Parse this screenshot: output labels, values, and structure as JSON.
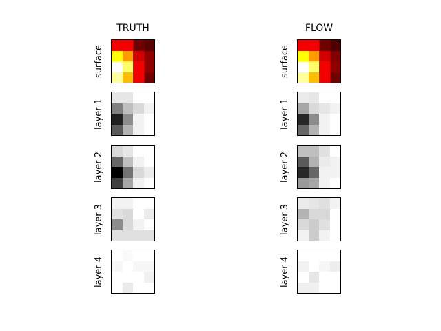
{
  "chart_data": {
    "type": "heatmap",
    "columns": [
      {
        "key": "truth",
        "title": "TRUTH"
      },
      {
        "key": "flow",
        "title": "FLOW"
      }
    ],
    "rows": [
      {
        "key": "surface",
        "label": "surface",
        "colormap": "hot"
      },
      {
        "key": "layer_1",
        "label": "layer 1",
        "colormap": "gray_r"
      },
      {
        "key": "layer_2",
        "label": "layer 2",
        "colormap": "gray_r"
      },
      {
        "key": "layer_3",
        "label": "layer 3",
        "colormap": "gray_r"
      },
      {
        "key": "layer_4",
        "label": "layer 4",
        "colormap": "gray_r"
      }
    ],
    "grids": {
      "truth": {
        "surface": [
          [
            0.35,
            0.35,
            0.15,
            0.12
          ],
          [
            0.75,
            0.6,
            0.3,
            0.2
          ],
          [
            1.0,
            0.85,
            0.35,
            0.2
          ],
          [
            0.9,
            0.65,
            0.35,
            0.15
          ]
        ],
        "layer_1": [
          [
            0.1,
            0.1,
            0.0,
            0.0
          ],
          [
            0.5,
            0.25,
            0.15,
            0.05
          ],
          [
            0.88,
            0.45,
            0.05,
            0.0
          ],
          [
            0.65,
            0.3,
            0.05,
            0.0
          ]
        ],
        "layer_2": [
          [
            0.15,
            0.1,
            0.0,
            0.0
          ],
          [
            0.6,
            0.25,
            0.05,
            0.0
          ],
          [
            1.0,
            0.55,
            0.15,
            0.08
          ],
          [
            0.75,
            0.35,
            0.05,
            0.0
          ]
        ],
        "layer_3": [
          [
            0.05,
            0.05,
            0.0,
            0.0
          ],
          [
            0.12,
            0.15,
            0.0,
            0.08
          ],
          [
            0.45,
            0.15,
            0.05,
            0.0
          ],
          [
            0.12,
            0.12,
            0.12,
            0.12
          ]
        ],
        "layer_4": [
          [
            0.0,
            0.02,
            0.0,
            0.0
          ],
          [
            0.03,
            0.0,
            0.03,
            0.03
          ],
          [
            0.0,
            0.0,
            0.0,
            0.06
          ],
          [
            0.0,
            0.08,
            0.0,
            0.0
          ]
        ]
      },
      "flow": {
        "surface": [
          [
            0.35,
            0.35,
            0.15,
            0.1
          ],
          [
            0.75,
            0.6,
            0.3,
            0.18
          ],
          [
            1.0,
            0.85,
            0.35,
            0.2
          ],
          [
            0.9,
            0.65,
            0.35,
            0.15
          ]
        ],
        "layer_1": [
          [
            0.08,
            0.1,
            0.0,
            0.0
          ],
          [
            0.35,
            0.15,
            0.1,
            0.05
          ],
          [
            0.85,
            0.45,
            0.05,
            0.0
          ],
          [
            0.6,
            0.3,
            0.05,
            0.0
          ]
        ],
        "layer_2": [
          [
            0.25,
            0.25,
            0.12,
            0.0
          ],
          [
            0.65,
            0.3,
            0.08,
            0.05
          ],
          [
            0.85,
            0.6,
            0.05,
            0.05
          ],
          [
            0.4,
            0.35,
            0.05,
            0.0
          ]
        ],
        "layer_3": [
          [
            0.08,
            0.1,
            0.12,
            0.05
          ],
          [
            0.3,
            0.15,
            0.15,
            0.0
          ],
          [
            0.15,
            0.2,
            0.12,
            0.0
          ],
          [
            0.05,
            0.2,
            0.05,
            0.0
          ]
        ],
        "layer_4": [
          [
            0.0,
            0.0,
            0.0,
            0.0
          ],
          [
            0.05,
            0.0,
            0.03,
            0.07
          ],
          [
            0.0,
            0.1,
            0.0,
            0.0
          ],
          [
            0.06,
            0.06,
            0.0,
            0.0
          ]
        ]
      }
    },
    "value_range": [
      0,
      1
    ]
  }
}
